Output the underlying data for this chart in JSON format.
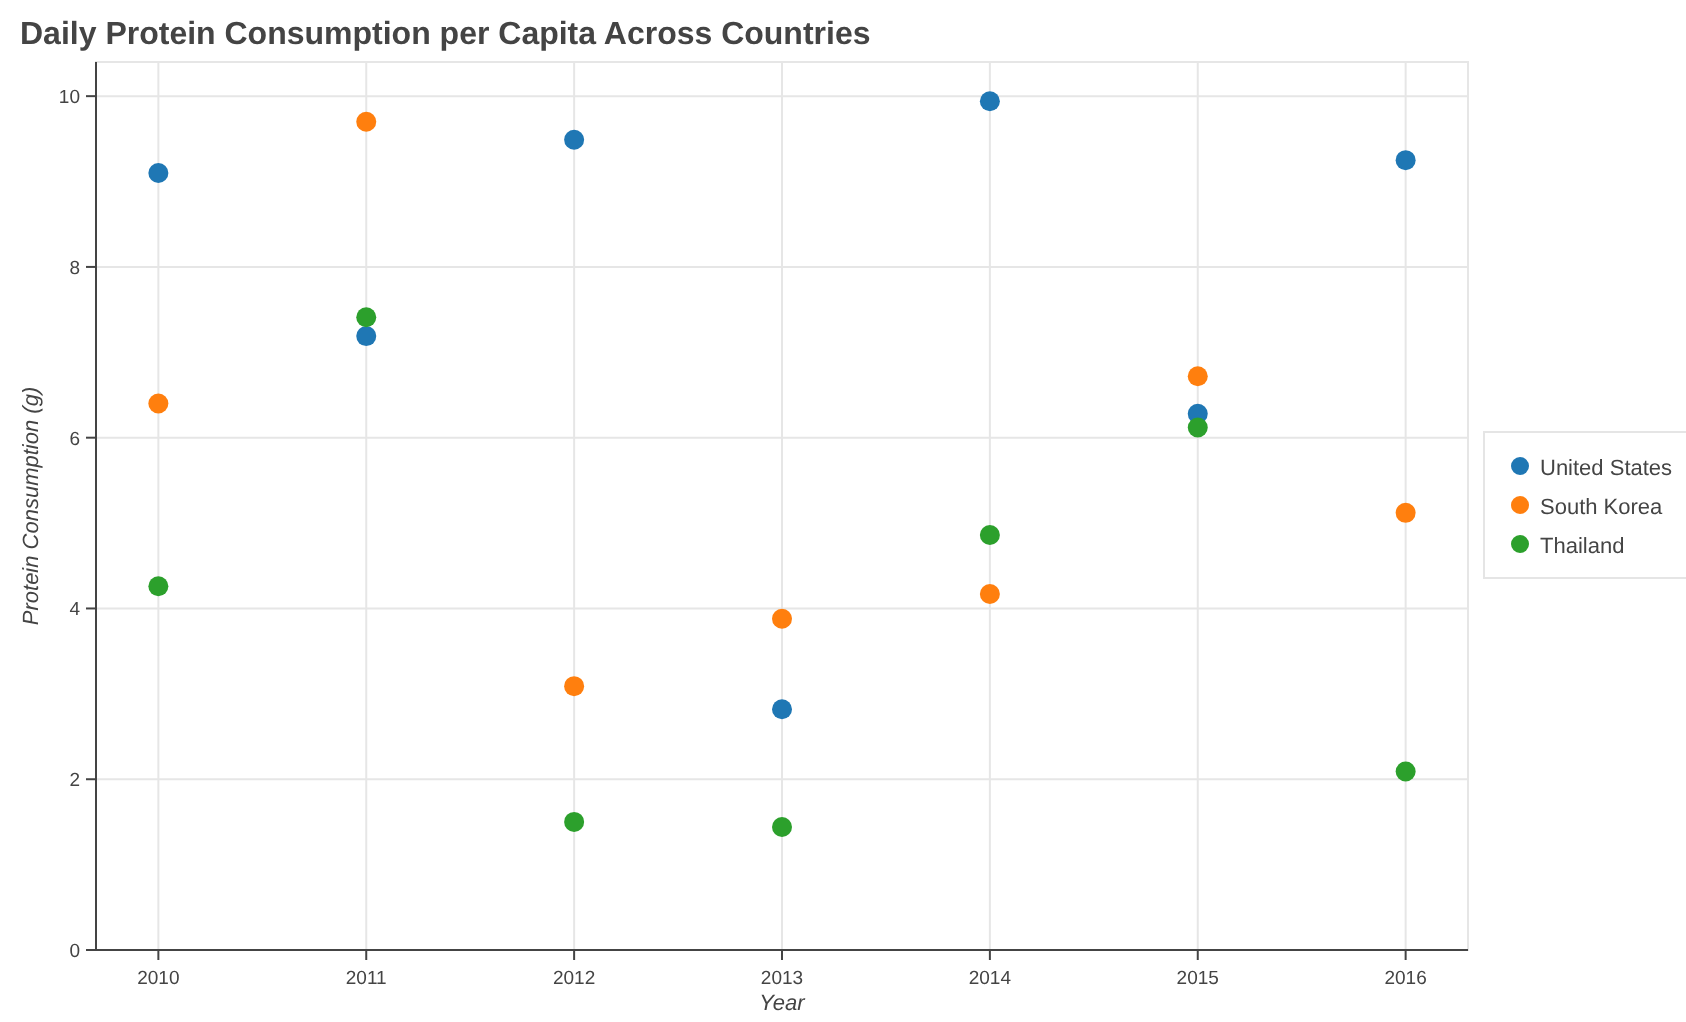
{
  "chart_data": {
    "type": "scatter",
    "title": "Daily Protein Consumption per Capita Across Countries",
    "xlabel": "Year",
    "ylabel": "Protein Consumption (g)",
    "x": [
      2010,
      2011,
      2012,
      2013,
      2014,
      2015,
      2016
    ],
    "series": [
      {
        "name": "United States",
        "color": "#1f77b4",
        "values": [
          9.1,
          7.19,
          9.49,
          2.82,
          9.94,
          6.28,
          9.25
        ]
      },
      {
        "name": "South Korea",
        "color": "#ff7f0e",
        "values": [
          6.4,
          9.7,
          3.09,
          3.88,
          4.17,
          6.72,
          5.12
        ]
      },
      {
        "name": "Thailand",
        "color": "#2ca02c",
        "values": [
          4.26,
          7.41,
          1.5,
          1.44,
          4.86,
          6.12,
          2.09
        ]
      }
    ],
    "xlim": [
      2009.7,
      2016.3
    ],
    "xticks": [
      2010,
      2011,
      2012,
      2013,
      2014,
      2015,
      2016
    ],
    "ylim": [
      0,
      10.4
    ],
    "yticks": [
      0,
      2,
      4,
      6,
      8,
      10
    ],
    "grid": true,
    "legend": "right",
    "marker": "circle"
  }
}
